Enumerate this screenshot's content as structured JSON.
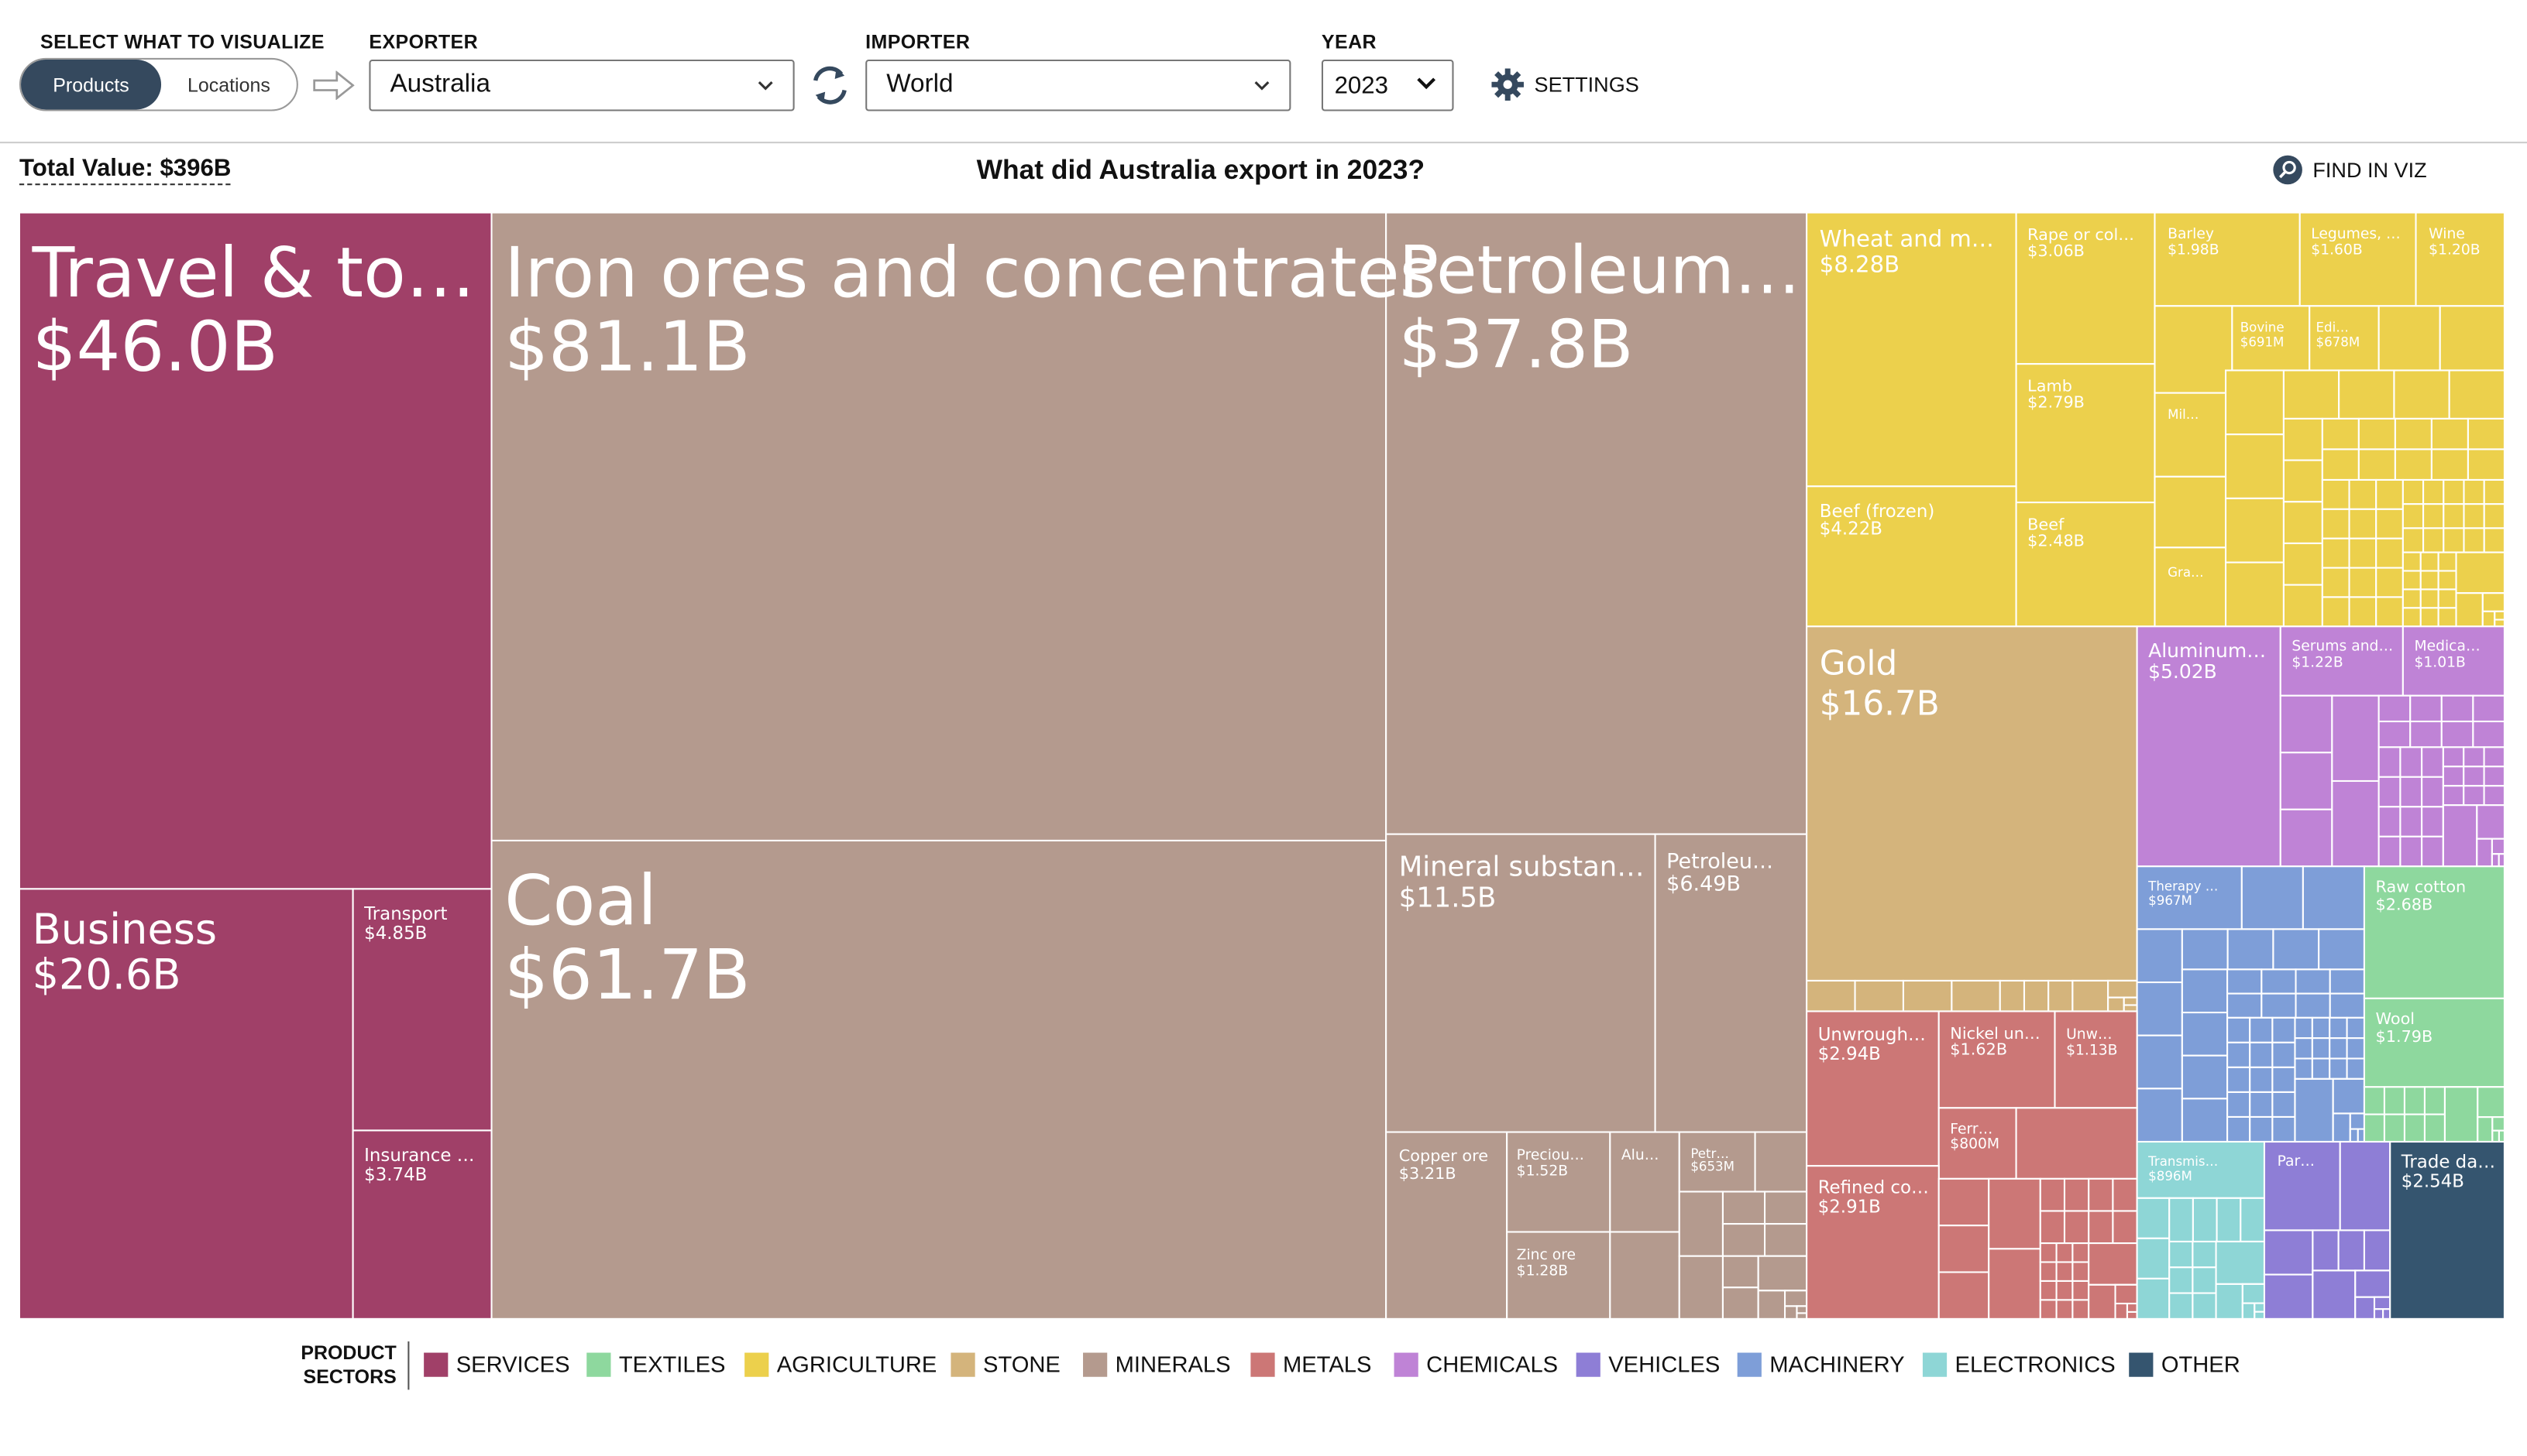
{
  "controls": {
    "visualize_label": "SELECT WHAT TO VISUALIZE",
    "products_label": "Products",
    "locations_label": "Locations",
    "exporter_label": "EXPORTER",
    "exporter_value": "Australia",
    "importer_label": "IMPORTER",
    "importer_value": "World",
    "year_label": "YEAR",
    "year_value": "2023",
    "settings_label": "SETTINGS"
  },
  "header": {
    "total_value": "Total Value: $396B",
    "title": "What did Australia export in 2023?",
    "find_label": "FIND IN VIZ"
  },
  "icons": {
    "arrow": "arrow-right-icon",
    "swap": "swap-icon",
    "settings": "gear-icon",
    "find": "search-icon",
    "select": "chevron-down-icon"
  },
  "colors": {
    "services": "#a04068",
    "textiles": "#8ed89e",
    "agriculture": "#ecd04c",
    "stone": "#d4b47c",
    "minerals": "#b49a8e",
    "metals": "#cc7776",
    "chemicals": "#bf83d6",
    "vehicles": "#8e7ed6",
    "machinery": "#7e9ed8",
    "electronics": "#8ed6d6",
    "other": "#35556f"
  },
  "legend": {
    "title_line1": "PRODUCT",
    "title_line2": "SECTORS",
    "items": [
      {
        "label": "SERVICES",
        "color": "#a04068"
      },
      {
        "label": "TEXTILES",
        "color": "#8ed89e"
      },
      {
        "label": "AGRICULTURE",
        "color": "#ecd04c"
      },
      {
        "label": "STONE",
        "color": "#d4b47c"
      },
      {
        "label": "MINERALS",
        "color": "#b49a8e"
      },
      {
        "label": "METALS",
        "color": "#cc7776"
      },
      {
        "label": "CHEMICALS",
        "color": "#bf83d6"
      },
      {
        "label": "VEHICLES",
        "color": "#8e7ed6"
      },
      {
        "label": "MACHINERY",
        "color": "#7e9ed8"
      },
      {
        "label": "ELECTRONICS",
        "color": "#8ed6d6"
      },
      {
        "label": "OTHER",
        "color": "#35556f"
      }
    ]
  },
  "chart_data": {
    "type": "treemap",
    "title": "What did Australia export in 2023?",
    "total": "$396B",
    "labeled_items": [
      {
        "name": "Travel & to…",
        "value": "$46.0B",
        "sector": "services"
      },
      {
        "name": "Business",
        "value": "$20.6B",
        "sector": "services"
      },
      {
        "name": "Transport",
        "value": "$4.85B",
        "sector": "services"
      },
      {
        "name": "Insurance …",
        "value": "$3.74B",
        "sector": "services"
      },
      {
        "name": "Iron ores and concentrates",
        "value": "$81.1B",
        "sector": "minerals"
      },
      {
        "name": "Coal",
        "value": "$61.7B",
        "sector": "minerals"
      },
      {
        "name": "Petroleum…",
        "value": "$37.8B",
        "sector": "minerals"
      },
      {
        "name": "Mineral substan…",
        "value": "$11.5B",
        "sector": "minerals"
      },
      {
        "name": "Petroleu…",
        "value": "$6.49B",
        "sector": "minerals"
      },
      {
        "name": "Copper ore",
        "value": "$3.21B",
        "sector": "minerals"
      },
      {
        "name": "Preciou…",
        "value": "$1.52B",
        "sector": "minerals"
      },
      {
        "name": "Alu…",
        "value": "",
        "sector": "minerals"
      },
      {
        "name": "Petr…",
        "value": "$653M",
        "sector": "minerals"
      },
      {
        "name": "Zinc ore",
        "value": "$1.28B",
        "sector": "minerals"
      },
      {
        "name": "Wheat and m…",
        "value": "$8.28B",
        "sector": "agriculture"
      },
      {
        "name": "Rape or col…",
        "value": "$3.06B",
        "sector": "agriculture"
      },
      {
        "name": "Barley",
        "value": "$1.98B",
        "sector": "agriculture"
      },
      {
        "name": "Legumes, …",
        "value": "$1.60B",
        "sector": "agriculture"
      },
      {
        "name": "Wine",
        "value": "$1.20B",
        "sector": "agriculture"
      },
      {
        "name": "Bovine",
        "value": "$691M",
        "sector": "agriculture"
      },
      {
        "name": "Edi…",
        "value": "$678M",
        "sector": "agriculture"
      },
      {
        "name": "Lamb",
        "value": "$2.79B",
        "sector": "agriculture"
      },
      {
        "name": "Mil…",
        "value": "",
        "sector": "agriculture"
      },
      {
        "name": "Beef (frozen)",
        "value": "$4.22B",
        "sector": "agriculture"
      },
      {
        "name": "Beef",
        "value": "$2.48B",
        "sector": "agriculture"
      },
      {
        "name": "Gra…",
        "value": "",
        "sector": "agriculture"
      },
      {
        "name": "Gold",
        "value": "$16.7B",
        "sector": "stone"
      },
      {
        "name": "Aluminum…",
        "value": "$5.02B",
        "sector": "chemicals"
      },
      {
        "name": "Serums and…",
        "value": "$1.22B",
        "sector": "chemicals"
      },
      {
        "name": "Medica…",
        "value": "$1.01B",
        "sector": "chemicals"
      },
      {
        "name": "Therapy …",
        "value": "$967M",
        "sector": "machinery"
      },
      {
        "name": "Raw cotton",
        "value": "$2.68B",
        "sector": "textiles"
      },
      {
        "name": "Wool",
        "value": "$1.79B",
        "sector": "textiles"
      },
      {
        "name": "Unwrough…",
        "value": "$2.94B",
        "sector": "metals"
      },
      {
        "name": "Nickel un…",
        "value": "$1.62B",
        "sector": "metals"
      },
      {
        "name": "Unw…",
        "value": "$1.13B",
        "sector": "metals"
      },
      {
        "name": "Ferr…",
        "value": "$800M",
        "sector": "metals"
      },
      {
        "name": "Refined co…",
        "value": "$2.91B",
        "sector": "metals"
      },
      {
        "name": "Transmis…",
        "value": "$896M",
        "sector": "electronics"
      },
      {
        "name": "Par…",
        "value": "",
        "sector": "vehicles"
      },
      {
        "name": "Trade da…",
        "value": "$2.54B",
        "sector": "other"
      }
    ]
  }
}
